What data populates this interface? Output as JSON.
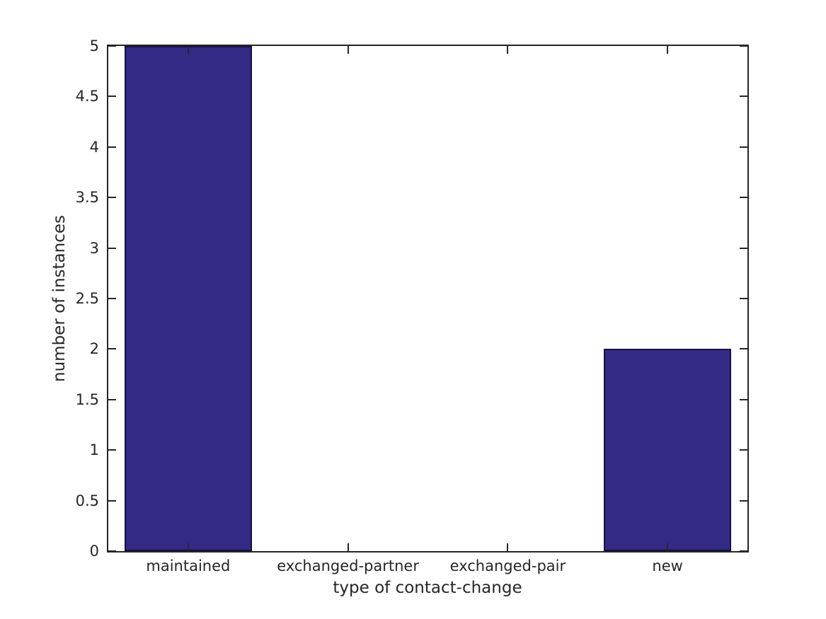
{
  "chart_data": {
    "type": "bar",
    "title": "",
    "xlabel": "type of contact-change",
    "ylabel": "number of instances",
    "categories": [
      "maintained",
      "exchanged-partner",
      "exchanged-pair",
      "new"
    ],
    "values": [
      5,
      0,
      0,
      2
    ],
    "ylim": [
      0,
      5
    ],
    "yticks": [
      0,
      0.5,
      1,
      1.5,
      2,
      2.5,
      3,
      3.5,
      4,
      4.5,
      5
    ],
    "bar_width_fraction": 0.8,
    "grid": false,
    "legend": null,
    "colors": {
      "bar_fill": "#332a86",
      "bar_edge": "#16113e",
      "axis": "#262626",
      "text": "#262626",
      "background": "#ffffff"
    }
  }
}
